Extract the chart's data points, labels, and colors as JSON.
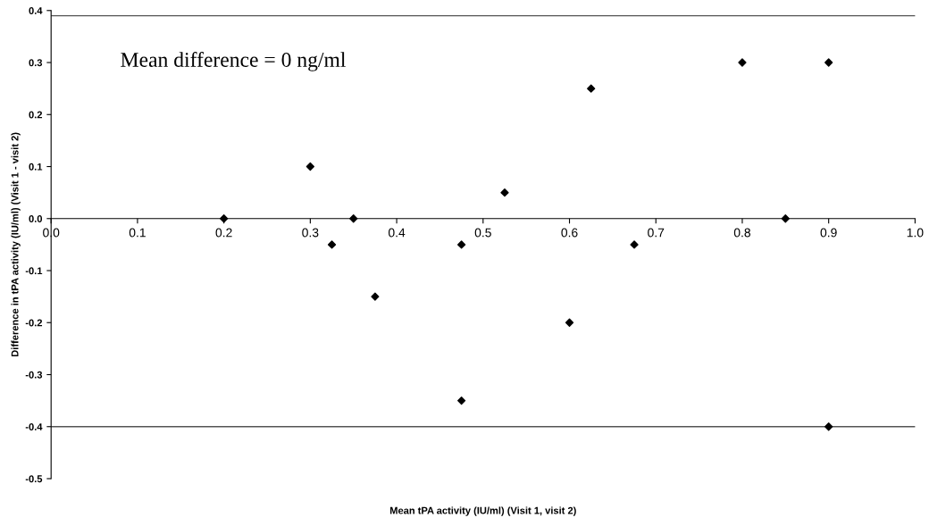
{
  "chart_data": {
    "type": "scatter",
    "xlabel": "Mean tPA activity (IU/ml) (Visit 1, visit 2)",
    "ylabel": "Difference in tPA activity (IU/ml) (Visit 1 - visit 2)",
    "annotations": [
      "Mean difference = 0 ng/ml"
    ],
    "x": [
      0.2,
      0.3,
      0.325,
      0.35,
      0.375,
      0.475,
      0.475,
      0.525,
      0.6,
      0.625,
      0.675,
      0.8,
      0.85,
      0.9,
      0.9
    ],
    "series": [
      {
        "color": "#000000",
        "values": [
          0,
          0.1,
          -0.05,
          0,
          -0.15,
          -0.05,
          -0.35,
          0.05,
          -0.2,
          0.25,
          -0.05,
          0.3,
          0,
          0.3,
          -0.4
        ]
      }
    ],
    "marker": "diamond",
    "xlim": [
      0,
      1
    ],
    "ylim": [
      -0.5,
      0.4
    ],
    "xticks": [
      {
        "value": 0,
        "label": "0.0"
      },
      0.1,
      0.2,
      0.3,
      0.4,
      0.5,
      0.6,
      0.7,
      0.8,
      0.9,
      {
        "value": 1,
        "label": "1.0"
      }
    ],
    "yticks": [
      -0.5,
      -0.4,
      -0.3,
      -0.2,
      -0.1,
      {
        "value": 0,
        "label": "0.0"
      },
      0.1,
      0.2,
      0.3,
      0.4
    ],
    "ref_lines": [
      {
        "axis": "y",
        "value": 0.39,
        "color": "#555555"
      },
      {
        "axis": "y",
        "value": -0.4,
        "color": "#555555"
      }
    ],
    "grid": false,
    "legend": false
  }
}
